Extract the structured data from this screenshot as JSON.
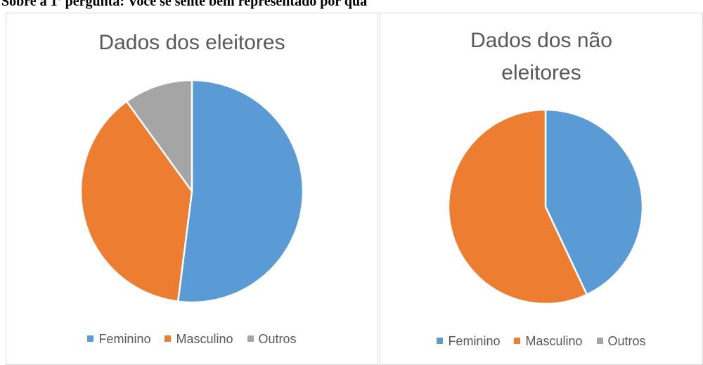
{
  "header": {
    "text": "Sobre a 1ª pergunta: Você se sente bem representado por qua"
  },
  "chart_data": [
    {
      "type": "pie",
      "title": "Dados dos eleitores",
      "categories": [
        "Feminino",
        "Masculino",
        "Outros"
      ],
      "values": [
        52,
        38,
        10
      ],
      "colors": [
        "#5b9bd5",
        "#ed7d31",
        "#a5a5a5"
      ],
      "legend": "bottom"
    },
    {
      "type": "pie",
      "title": "Dados dos não eleitores",
      "categories": [
        "Feminino",
        "Masculino",
        "Outros"
      ],
      "values": [
        43,
        57,
        0
      ],
      "colors": [
        "#5b9bd5",
        "#ed7d31",
        "#a5a5a5"
      ],
      "legend": "bottom"
    }
  ]
}
